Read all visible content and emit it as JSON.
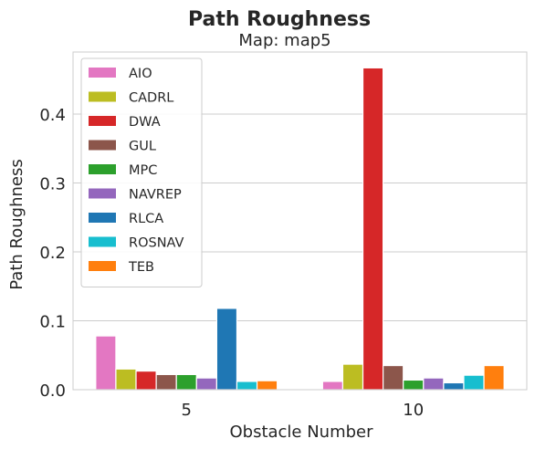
{
  "chart_data": {
    "type": "bar",
    "title": "Path Roughness",
    "subtitle": "Map: map5",
    "xlabel": "Obstacle Number",
    "ylabel": "Path Roughness",
    "categories": [
      "5",
      "10"
    ],
    "ylim": [
      0,
      0.49
    ],
    "yticks": [
      0.0,
      0.1,
      0.2,
      0.3,
      0.4
    ],
    "ytick_labels": [
      "0.0",
      "0.1",
      "0.2",
      "0.3",
      "0.4"
    ],
    "grid": true,
    "legend_position": "top-left",
    "series": [
      {
        "name": "AIO",
        "color": "#e377c2",
        "values": [
          0.078,
          0.012
        ]
      },
      {
        "name": "CADRL",
        "color": "#bcbd22",
        "values": [
          0.03,
          0.037
        ]
      },
      {
        "name": "DWA",
        "color": "#d62728",
        "values": [
          0.027,
          0.467
        ]
      },
      {
        "name": "GUL",
        "color": "#8c564b",
        "values": [
          0.022,
          0.035
        ]
      },
      {
        "name": "MPC",
        "color": "#2ca02c",
        "values": [
          0.022,
          0.014
        ]
      },
      {
        "name": "NAVREP",
        "color": "#9467bd",
        "values": [
          0.017,
          0.017
        ]
      },
      {
        "name": "RLCA",
        "color": "#1f77b4",
        "values": [
          0.118,
          0.01
        ]
      },
      {
        "name": "ROSNAV",
        "color": "#17becf",
        "values": [
          0.012,
          0.021
        ]
      },
      {
        "name": "TEB",
        "color": "#ff7f0e",
        "values": [
          0.013,
          0.035
        ]
      }
    ]
  }
}
